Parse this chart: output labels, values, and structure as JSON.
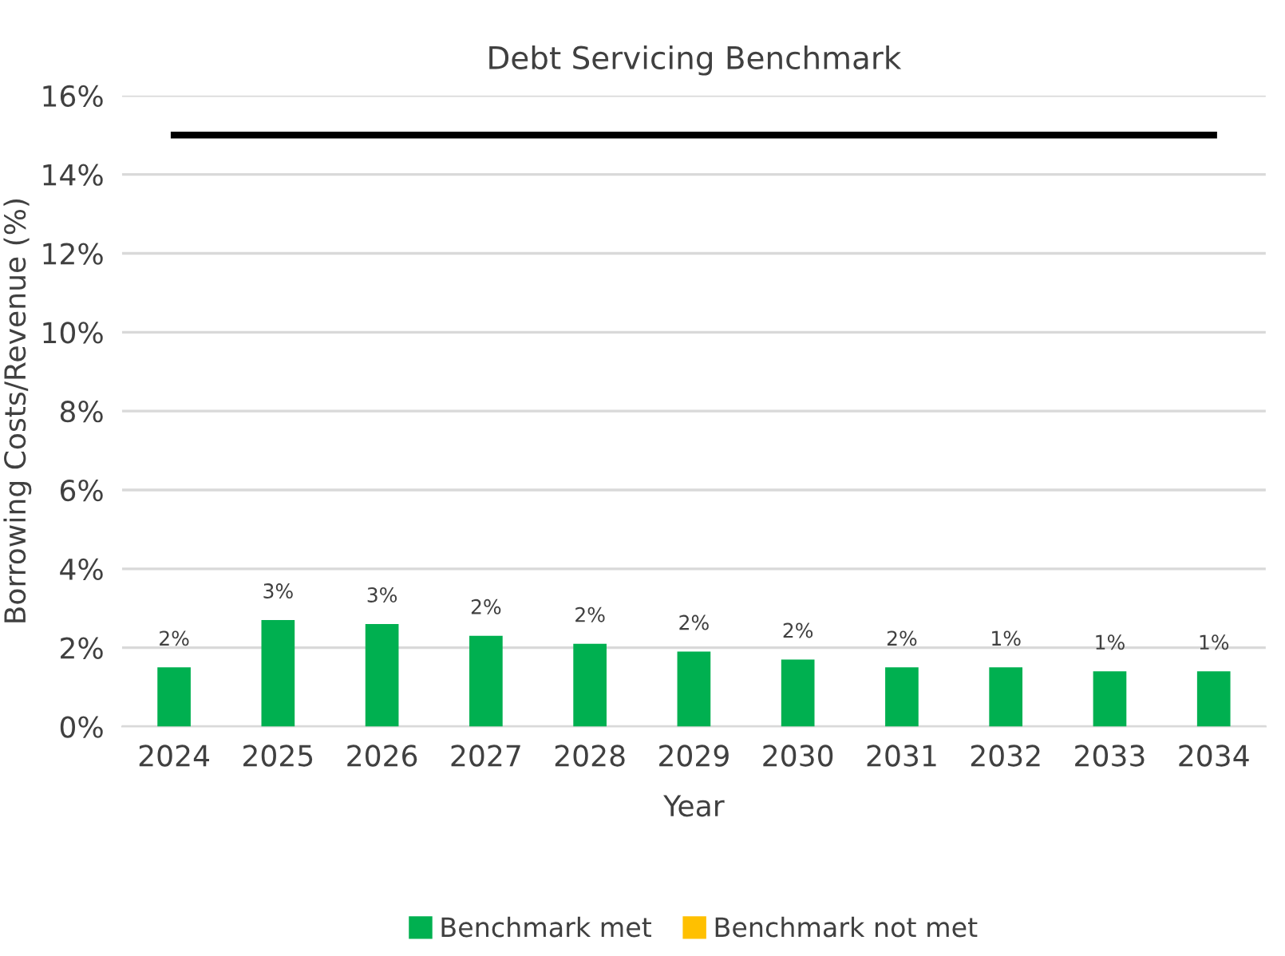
{
  "chart_data": {
    "type": "bar",
    "title": "Debt Servicing Benchmark",
    "xlabel": "Year",
    "ylabel": "Borrowing Costs/Revenue (%)",
    "categories": [
      "2024",
      "2025",
      "2026",
      "2027",
      "2028",
      "2029",
      "2030",
      "2031",
      "2032",
      "2033",
      "2034"
    ],
    "series": [
      {
        "name": "Benchmark met",
        "color": "#00b050",
        "values": [
          1.5,
          2.7,
          2.6,
          2.3,
          2.1,
          1.9,
          1.7,
          1.5,
          1.5,
          1.4,
          1.4
        ],
        "value_labels": [
          "2%",
          "3%",
          "3%",
          "2%",
          "2%",
          "2%",
          "2%",
          "2%",
          "1%",
          "1%",
          "1%"
        ]
      },
      {
        "name": "Benchmark not met",
        "color": "#ffc000",
        "values": [
          null,
          null,
          null,
          null,
          null,
          null,
          null,
          null,
          null,
          null,
          null
        ]
      },
      {
        "type": "line",
        "color": "#000000",
        "values": [
          15,
          15,
          15,
          15,
          15,
          15,
          15,
          15,
          15,
          15,
          15
        ]
      }
    ],
    "ylim": [
      0,
      16
    ],
    "yticks": [
      {
        "value": 0,
        "label": "0%"
      },
      {
        "value": 2,
        "label": "2%"
      },
      {
        "value": 4,
        "label": "4%"
      },
      {
        "value": 6,
        "label": "6%"
      },
      {
        "value": 8,
        "label": "8%"
      },
      {
        "value": 10,
        "label": "10%"
      },
      {
        "value": 12,
        "label": "12%"
      },
      {
        "value": 14,
        "label": "14%"
      },
      {
        "value": 16,
        "label": "16%"
      }
    ],
    "grid": "y",
    "legend": "bottom"
  }
}
